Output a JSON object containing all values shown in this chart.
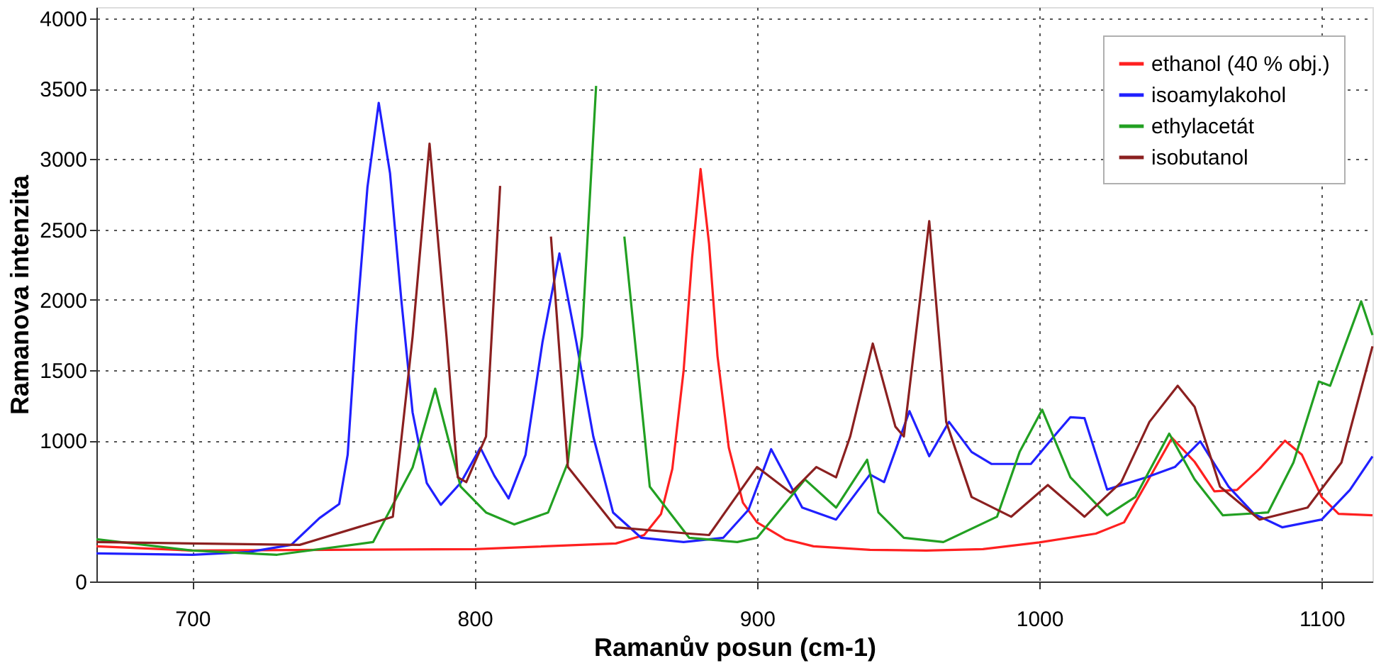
{
  "chart_data": {
    "type": "line",
    "xlabel": "Ramanův posun (cm-1)",
    "ylabel": "Ramanova intenzita",
    "xlim": [
      666,
      1118
    ],
    "ylim": [
      0,
      4080
    ],
    "xticks": [
      700,
      800,
      900,
      1000,
      1100
    ],
    "yticks": [
      0,
      1000,
      1500,
      2000,
      2500,
      3000,
      3500,
      4000
    ],
    "grid": true,
    "legend": "top right",
    "marker": "none",
    "line_style": "solid",
    "series": [
      {
        "name": "ethanol (40 % obj.)",
        "color": "#ff2020",
        "x": [
          666,
          700,
          800,
          850,
          860,
          866,
          870,
          874,
          877,
          880,
          883,
          886,
          890,
          895,
          900,
          910,
          920,
          940,
          960,
          980,
          1000,
          1020,
          1030,
          1038,
          1047,
          1055,
          1062,
          1070,
          1078,
          1087,
          1093,
          1100,
          1106,
          1118
        ],
        "values": [
          250,
          220,
          230,
          270,
          330,
          480,
          800,
          1500,
          2300,
          2930,
          2400,
          1600,
          950,
          560,
          420,
          300,
          250,
          225,
          220,
          230,
          278,
          340,
          420,
          700,
          1020,
          850,
          640,
          650,
          800,
          1000,
          900,
          600,
          480,
          470
        ]
      },
      {
        "name": "isoamylakohol",
        "color": "#2020ff",
        "x": [
          666,
          700,
          720,
          735,
          745,
          752,
          755,
          758,
          762,
          766,
          770,
          774,
          778,
          783,
          788,
          795,
          802,
          807,
          812,
          818,
          824,
          830,
          836,
          842,
          849,
          859,
          874,
          888,
          897,
          905,
          916,
          928,
          940,
          945,
          954,
          961,
          968,
          976,
          983,
          997,
          1006,
          1011,
          1016,
          1024,
          1038,
          1048,
          1057,
          1067,
          1076,
          1086,
          1100,
          1110,
          1118
        ],
        "values": [
          200,
          190,
          210,
          260,
          450,
          550,
          900,
          1800,
          2800,
          3400,
          2900,
          2000,
          1200,
          700,
          545,
          700,
          950,
          750,
          590,
          900,
          1700,
          2330,
          1700,
          1030,
          490,
          310,
          280,
          310,
          510,
          940,
          525,
          440,
          760,
          706,
          1210,
          890,
          1134,
          920,
          835,
          835,
          1050,
          1167,
          1160,
          653,
          740,
          813,
          995,
          674,
          480,
          385,
          440,
          650,
          888
        ]
      },
      {
        "name": "ethylacetát",
        "color": "#22a022",
        "x": [
          666,
          700,
          730,
          764,
          778,
          786,
          795,
          804,
          814,
          826,
          833,
          838,
          843,
          844,
          850,
          853,
          862,
          876,
          893,
          900,
          917,
          928,
          939,
          943,
          952,
          966,
          985,
          993,
          1001,
          1011,
          1024,
          1034,
          1046,
          1055,
          1065,
          1081,
          1090,
          1099,
          1103,
          1114,
          1118
        ],
        "values": [
          300,
          220,
          190,
          280,
          810,
          1370,
          674,
          490,
          405,
          490,
          845,
          1740,
          3520,
          null,
          null,
          2450,
          674,
          310,
          280,
          310,
          725,
          525,
          865,
          490,
          310,
          280,
          460,
          920,
          1220,
          740,
          470,
          600,
          1050,
          725,
          470,
          490,
          845,
          1420,
          1390,
          1990,
          1750
        ]
      },
      {
        "name": "isobutanol",
        "color": "#8b2020",
        "x": [
          666,
          700,
          738,
          771,
          778,
          784,
          790,
          794,
          797,
          804,
          809,
          812,
          822,
          825,
          827,
          833,
          850,
          876,
          883,
          900,
          912,
          921,
          928,
          933,
          941,
          949,
          952,
          961,
          967,
          976,
          990,
          1003,
          1016,
          1029,
          1039,
          1049,
          1055,
          1064,
          1078,
          1095,
          1107,
          1118
        ],
        "values": [
          280,
          270,
          260,
          460,
          1740,
          3110,
          1740,
          740,
          706,
          1030,
          2810,
          null,
          null,
          null,
          2450,
          813,
          385,
          340,
          330,
          813,
          630,
          813,
          740,
          1030,
          1690,
          1100,
          1030,
          2560,
          1134,
          600,
          460,
          685,
          460,
          706,
          1134,
          1390,
          1240,
          674,
          440,
          525,
          845,
          1670
        ]
      }
    ]
  }
}
